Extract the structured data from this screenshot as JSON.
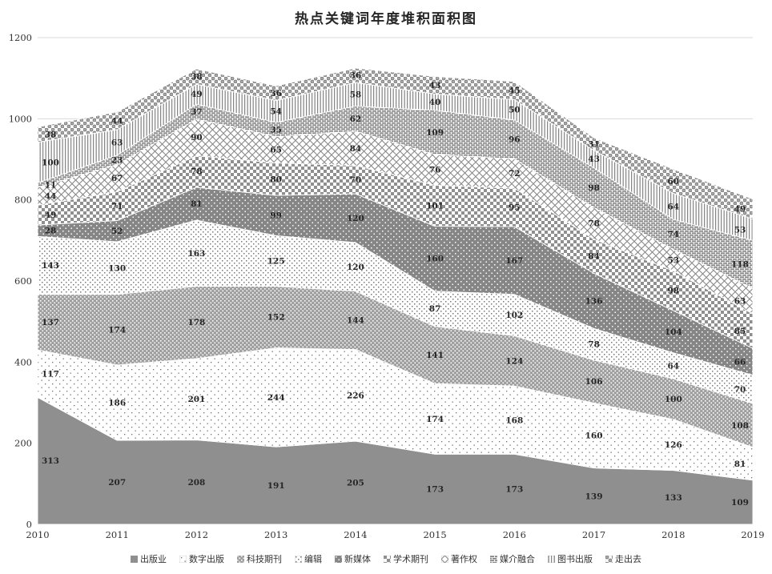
{
  "title": "热点关键词年度堆积面积图",
  "chart_data": {
    "type": "area",
    "stacked": true,
    "title": "热点关键词年度堆积面积图",
    "categories": [
      "2010",
      "2011",
      "2012",
      "2013",
      "2014",
      "2015",
      "2016",
      "2017",
      "2018",
      "2019"
    ],
    "series": [
      {
        "name": "出版业",
        "pattern": "solid-gray",
        "values": [
          313,
          207,
          208,
          191,
          205,
          173,
          173,
          139,
          133,
          109
        ]
      },
      {
        "name": "数字出版",
        "pattern": "fine-sparse-dots",
        "values": [
          117,
          186,
          201,
          244,
          226,
          174,
          168,
          160,
          126,
          81
        ]
      },
      {
        "name": "科技期刊",
        "pattern": "dark-white-specks",
        "values": [
          137,
          174,
          178,
          152,
          144,
          141,
          124,
          106,
          100,
          108
        ]
      },
      {
        "name": "编辑",
        "pattern": "light-dots",
        "values": [
          143,
          130,
          163,
          125,
          120,
          87,
          102,
          78,
          64,
          70
        ]
      },
      {
        "name": "新媒体",
        "pattern": "dark-sparse-white-dots",
        "values": [
          28,
          52,
          81,
          99,
          120,
          160,
          167,
          136,
          104,
          66
        ]
      },
      {
        "name": "学术期刊",
        "pattern": "checkerboard",
        "values": [
          49,
          71,
          78,
          80,
          70,
          101,
          95,
          84,
          98,
          85
        ]
      },
      {
        "name": "著作权",
        "pattern": "diamond-lattice",
        "values": [
          44,
          67,
          90,
          65,
          84,
          76,
          72,
          78,
          53,
          63
        ]
      },
      {
        "name": "媒介融合",
        "pattern": "horizontal-bricks",
        "values": [
          11,
          23,
          37,
          35,
          62,
          109,
          96,
          98,
          74,
          118
        ]
      },
      {
        "name": "图书出版",
        "pattern": "vertical-lines",
        "values": [
          100,
          63,
          49,
          54,
          58,
          40,
          50,
          43,
          64,
          53
        ]
      },
      {
        "name": "走出去",
        "pattern": "circle-grid",
        "values": [
          38,
          44,
          38,
          36,
          36,
          43,
          45,
          31,
          60,
          49
        ]
      }
    ],
    "xlabel": "",
    "ylabel": "",
    "ylim": [
      0,
      1200
    ],
    "yticks": [
      0,
      200,
      400,
      600,
      800,
      1000,
      1200
    ],
    "legend_position": "bottom",
    "grid": true
  },
  "colors": {
    "background": "#ffffff",
    "area_gray": "#8f8f8f",
    "label_text": "#262626",
    "axis_text": "#333333",
    "gridline": "#d9d9d9"
  }
}
